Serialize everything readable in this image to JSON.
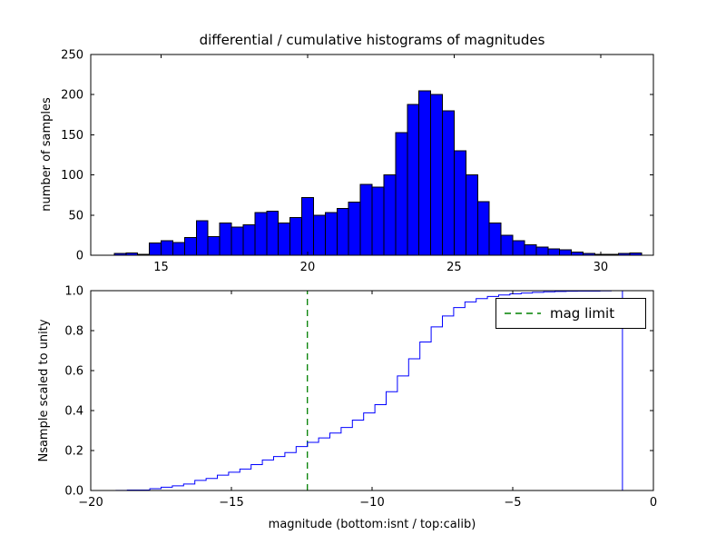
{
  "figure": {
    "background": "#ffffff",
    "colors": {
      "bar_fill": "#0000ff",
      "bar_edge": "#000000",
      "cdf_line": "#0000ff",
      "mag_limit": "#008000",
      "axes": "#000000",
      "text": "#000000"
    }
  },
  "chart_data": [
    {
      "type": "bar",
      "role": "differential-histogram",
      "title": "differential / cumulative histograms of magnitudes",
      "ylabel": "number of samples",
      "bin_start": 13.4,
      "bin_width": 0.4,
      "counts": [
        2,
        3,
        1,
        15,
        18,
        16,
        22,
        43,
        23,
        40,
        35,
        38,
        53,
        55,
        40,
        47,
        72,
        50,
        53,
        58,
        66,
        88,
        85,
        100,
        153,
        188,
        205,
        200,
        180,
        130,
        100,
        67,
        40,
        25,
        18,
        13,
        10,
        8,
        7,
        4,
        2,
        1,
        1,
        2,
        3
      ],
      "xlim": [
        12.6,
        31.8
      ],
      "ylim": [
        0,
        250
      ],
      "grid": false,
      "xticks": {
        "values": [
          15,
          20,
          25,
          30
        ],
        "labels": [
          "15",
          "20",
          "25",
          "30"
        ]
      },
      "yticks": {
        "values": [
          0,
          50,
          100,
          150,
          200,
          250
        ],
        "labels": [
          "0",
          "50",
          "100",
          "150",
          "200",
          "250"
        ]
      }
    },
    {
      "type": "line",
      "role": "cumulative-histogram-step",
      "note": "cumulative of top histogram counts, normalized to unity, plotted on instrumental magnitude axis",
      "ylabel": "Nsample scaled to unity",
      "xlabel": "magnitude (bottom:isnt / top:calib)",
      "x_offset_from_top_axis": -32.5,
      "xlim": [
        -20,
        0
      ],
      "ylim": [
        0,
        1
      ],
      "grid": false,
      "xticks": {
        "values": [
          -20,
          -15,
          -10,
          -5,
          0
        ],
        "labels": [
          "−20",
          "−15",
          "−10",
          "−5",
          "0"
        ]
      },
      "yticks": {
        "values": [
          0,
          0.2,
          0.4,
          0.6,
          0.8,
          1
        ],
        "labels": [
          "0.0",
          "0.2",
          "0.4",
          "0.6",
          "0.8",
          "1.0"
        ]
      },
      "mag_limit_x": -12.3,
      "legend": {
        "entries": [
          "mag limit"
        ],
        "position": "upper right"
      }
    }
  ]
}
